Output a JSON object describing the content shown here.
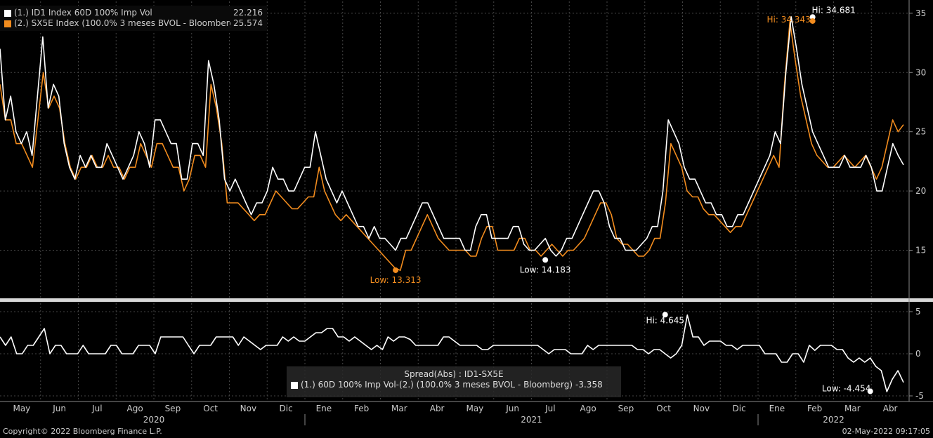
{
  "legend": {
    "items": [
      {
        "label": "(1.) ID1 Index 60D 100% Imp Vol",
        "value": "22.216",
        "color": "#ffffff"
      },
      {
        "label": "(2.) SX5E Index  (100.0% 3 meses BVOL - Bloomberg)",
        "value": "25.574",
        "color": "#f28c1e"
      }
    ]
  },
  "spread_legend": {
    "title": "Spread(Abs) : ID1-SX5E",
    "label": "(1.) 60D 100% Imp Vol-(2.)  (100.0% 3 meses BVOL - Bloomberg)",
    "value": "-3.358",
    "color": "#ffffff"
  },
  "footer": {
    "copyright": "Copyright© 2022 Bloomberg Finance L.P.",
    "timestamp": "02-May-2022 09:17:05"
  },
  "chart_data": {
    "type": "line",
    "x_months": [
      "May",
      "Jun",
      "Jul",
      "Ago",
      "Sep",
      "Oct",
      "Nov",
      "Dic",
      "Ene",
      "Feb",
      "Mar",
      "Abr",
      "May",
      "Jun",
      "Jul",
      "Ago",
      "Sep",
      "Oct",
      "Nov",
      "Dic",
      "Ene",
      "Feb",
      "Mar",
      "Abr"
    ],
    "x_years": [
      "2020",
      "2021",
      "2022"
    ],
    "upper_panel": {
      "ylim": [
        11,
        36
      ],
      "yticks": [
        15,
        20,
        25,
        30,
        35
      ],
      "series": [
        {
          "name": "(1.) ID1 Index 60D 100% Imp Vol",
          "color": "#ffffff",
          "values": [
            32,
            26,
            28,
            25,
            24,
            25,
            23,
            28,
            33,
            27,
            29,
            28,
            24,
            22,
            21,
            23,
            22,
            23,
            22,
            22,
            24,
            23,
            22,
            21,
            22,
            23,
            25,
            24,
            22,
            26,
            26,
            25,
            24,
            24,
            21,
            21,
            24,
            24,
            23,
            31,
            29,
            26,
            21,
            20,
            21,
            20,
            19,
            18,
            19,
            19,
            20,
            22,
            21,
            21,
            20,
            20,
            21,
            22,
            22,
            25,
            23,
            21,
            20,
            19,
            20,
            19,
            18,
            17,
            17,
            16,
            17,
            16,
            16,
            15.5,
            15,
            16,
            16,
            17,
            18,
            19,
            19,
            18,
            17,
            16,
            16,
            16,
            16,
            15,
            15,
            17,
            18,
            18,
            16,
            16,
            16,
            16,
            17,
            17,
            15.5,
            15,
            15,
            15.5,
            16,
            15,
            14.5,
            15,
            16,
            16,
            17,
            18,
            19,
            20,
            20,
            19,
            17,
            16,
            16,
            15,
            15,
            15,
            15.5,
            16,
            17,
            17,
            20,
            26,
            25,
            24,
            22,
            21,
            21,
            20,
            19,
            19,
            18,
            18,
            17,
            17,
            18,
            18,
            19,
            20,
            21,
            22,
            23,
            25,
            24,
            30,
            34.7,
            32,
            29,
            27,
            25,
            24,
            23,
            22,
            22,
            22,
            23,
            22,
            22,
            22,
            23,
            22,
            20,
            20,
            22,
            24,
            23,
            22.2
          ]
        },
        {
          "name": "(2.) SX5E Index  (100.0% 3 meses BVOL - Bloomberg)",
          "color": "#f28c1e",
          "values": [
            29,
            26,
            26,
            24,
            24,
            23,
            22,
            26,
            30,
            27,
            28,
            27,
            24,
            22,
            21,
            22,
            22,
            23,
            22,
            22,
            23,
            22,
            22,
            21,
            22,
            22,
            24,
            23,
            22,
            24,
            24,
            23,
            22,
            22,
            20,
            21,
            23,
            23,
            22,
            29,
            27,
            24,
            19,
            19,
            19,
            18.5,
            18,
            17.5,
            18,
            18,
            19,
            20,
            19.5,
            19,
            18.5,
            18.5,
            19,
            19.5,
            19.5,
            22,
            20,
            19,
            18,
            17.5,
            18,
            17.5,
            17,
            16.5,
            16,
            15.5,
            15,
            14.5,
            14,
            13.5,
            13.3,
            15,
            15,
            16,
            17,
            18,
            17,
            16,
            15.5,
            15,
            15,
            15,
            15,
            14.5,
            14.5,
            16,
            17,
            17,
            15,
            15,
            15,
            15,
            16,
            16,
            15,
            15,
            14.5,
            15,
            15.5,
            15,
            14.5,
            15,
            15,
            15.5,
            16,
            17,
            18,
            19,
            19,
            18,
            16,
            15.5,
            15.5,
            15,
            14.5,
            14.5,
            15,
            16,
            16,
            19,
            24,
            23,
            22,
            20,
            19.5,
            19.5,
            18.5,
            18,
            18,
            17.5,
            17,
            16.5,
            17,
            17,
            18,
            19,
            20,
            21,
            22,
            23,
            22,
            29,
            34.3,
            31,
            28,
            26,
            24,
            23,
            22.5,
            22,
            22,
            22.5,
            23,
            22.5,
            22,
            22.5,
            23,
            22,
            21,
            22,
            24,
            26,
            25,
            25.6
          ]
        }
      ],
      "annotations": [
        {
          "text": "Hi: 34.681",
          "color": "#ffffff",
          "x_index": 152,
          "value": 34.681
        },
        {
          "text": "Hi: 34.343",
          "color": "#f28c1e",
          "x_index": 152,
          "value": 34.343
        },
        {
          "text": "Low: 13.313",
          "color": "#f28c1e",
          "x_index": 74,
          "value": 13.313
        },
        {
          "text": "Low: 14.183",
          "color": "#ffffff",
          "x_index": 102,
          "value": 14.183
        }
      ]
    },
    "lower_panel": {
      "ylim": [
        -5.5,
        6
      ],
      "yticks": [
        -5,
        0,
        5
      ],
      "series": [
        {
          "name": "(1.) 60D 100% Imp Vol-(2.)  (100.0% 3 meses BVOL - Bloomberg)",
          "color": "#ffffff",
          "values": [
            2,
            1,
            2,
            0,
            0,
            1,
            1,
            2,
            3,
            0,
            1,
            1,
            0,
            0,
            0,
            1,
            0,
            0,
            0,
            0,
            1,
            1,
            0,
            0,
            0,
            1,
            1,
            1,
            0,
            2,
            2,
            2,
            2,
            2,
            1,
            0,
            1,
            1,
            1,
            2,
            2,
            2,
            2,
            1,
            2,
            1.5,
            1,
            0.5,
            1,
            1,
            1,
            2,
            1.5,
            2,
            1.5,
            1.5,
            2,
            2.5,
            2.5,
            3,
            3,
            2,
            2,
            1.5,
            2,
            1.5,
            1,
            0.5,
            1,
            0.5,
            2,
            1.5,
            2,
            2,
            1.7,
            1,
            1,
            1,
            1,
            1,
            2,
            2,
            1.5,
            1,
            1,
            1,
            1,
            0.5,
            0.5,
            1,
            1,
            1,
            1,
            1,
            1,
            1,
            1,
            1,
            0.5,
            0,
            0.5,
            0.5,
            0.5,
            0,
            0,
            0,
            1,
            0.5,
            1,
            1,
            1,
            1,
            1,
            1,
            1,
            0.5,
            0.5,
            0,
            0.5,
            0.5,
            0,
            -0.5,
            0,
            1,
            4.6,
            2,
            2,
            1,
            1.5,
            1.5,
            1.5,
            1,
            1,
            0.5,
            1,
            1,
            1,
            1,
            0,
            0,
            0,
            -1,
            -1,
            0,
            0,
            -1,
            1,
            0.4,
            1,
            1,
            1,
            0.5,
            0.5,
            -0.5,
            -1,
            -0.5,
            -1,
            -0.5,
            -1.5,
            -2,
            -4.5,
            -3,
            -2,
            -3.4
          ]
        }
      ],
      "annotations": [
        {
          "text": "Hi: 4.645",
          "color": "#ffffff",
          "x_index": 120,
          "value": 4.645
        },
        {
          "text": "Low: -4.454",
          "color": "#ffffff",
          "x_index": 157,
          "value": -4.454
        }
      ]
    }
  }
}
